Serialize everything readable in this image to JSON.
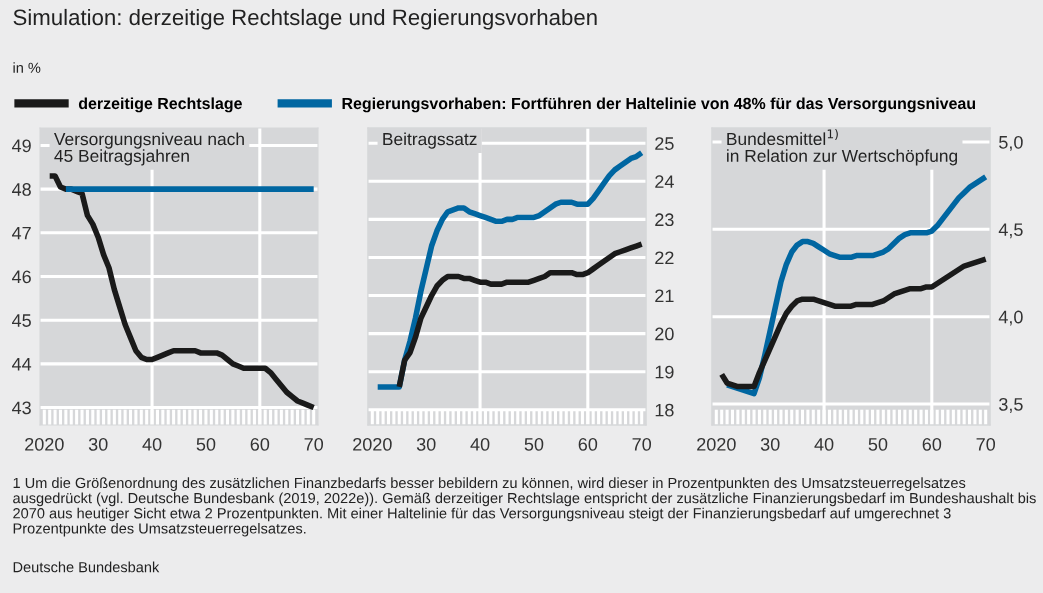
{
  "chart_data": [
    {
      "type": "line",
      "title": "Versorgungsniveau nach\n45 Beitragsjahren",
      "annotations": [
        "Simulation: derzeitige Rechtslage und Regierungsvorhaben",
        "in %",
        "1 Um die Größenordnung des zusätzlichen Finanzbedarfs besser bebildern zu können, wird dieser in Prozentpunkten des Umsatzsteuerregelsatzes ausgedrückt (vgl. Deutsche Bundesbank (2019, 2022e)). Gemäß derzeitiger Rechtslage entspricht der zusätzliche Finanzierungsbedarf im Bundeshaushalt bis 2070 aus heutiger Sicht etwa 2 Prozentpunkten. Mit einer Haltelinie für das Versorgungsniveau steigt der Finanzierungsbedarf auf umgerechnet 3 Prozentpunkte des Umsatzsteuerregelsatzes.",
        "Deutsche Bundesbank"
      ],
      "legend": "top",
      "categories": [
        "2020",
        null,
        null,
        null,
        null,
        null,
        null,
        null,
        null,
        null,
        "30",
        null,
        null,
        null,
        null,
        null,
        null,
        null,
        null,
        null,
        "40",
        null,
        null,
        null,
        null,
        null,
        null,
        null,
        null,
        null,
        "50",
        null,
        null,
        null,
        null,
        null,
        null,
        null,
        null,
        null,
        "60",
        null,
        null,
        null,
        null,
        null,
        null,
        null,
        null,
        null,
        "70"
      ],
      "series": [
        {
          "name": "derzeitige Rechtslage",
          "color": "#1a1a1a",
          "values": [
            null,
            48.3,
            48.3,
            48.05,
            48.0,
            48.0,
            47.95,
            47.9,
            47.4,
            47.2,
            46.9,
            46.5,
            46.2,
            45.7,
            45.3,
            44.9,
            44.6,
            44.3,
            44.15,
            44.1,
            44.1,
            44.15,
            44.2,
            44.25,
            44.3,
            44.3,
            44.3,
            44.3,
            44.3,
            44.25,
            44.25,
            44.25,
            44.25,
            44.2,
            44.1,
            44.0,
            43.95,
            43.9,
            43.9,
            43.9,
            43.9,
            43.9,
            43.8,
            43.65,
            43.5,
            43.35,
            43.25,
            43.15,
            43.1,
            43.05,
            43.0
          ]
        },
        {
          "name": "Regierungsvorhaben: Fortführen der Haltelinie von 48% für das Versorgungsniveau",
          "color": "#0066a1",
          "values": [
            null,
            null,
            null,
            null,
            48,
            48,
            48,
            48,
            48,
            48,
            48,
            48,
            48,
            48,
            48,
            48,
            48,
            48,
            48,
            48,
            48,
            48,
            48,
            48,
            48,
            48,
            48,
            48,
            48,
            48,
            48,
            48,
            48,
            48,
            48,
            48,
            48,
            48,
            48,
            48,
            48,
            48,
            48,
            48,
            48,
            48,
            48,
            48,
            48,
            48,
            48
          ]
        }
      ],
      "ylim": [
        42.6,
        49.4
      ],
      "yticks": [
        43,
        44,
        45,
        46,
        47,
        48,
        49
      ],
      "grid": "y",
      "ref_lines": [
        {
          "axis": "x",
          "value": "40",
          "color": "#ffffff"
        },
        {
          "axis": "x",
          "value": "60",
          "color": "#ffffff"
        }
      ]
    },
    {
      "type": "line",
      "title": "Beitragssatz",
      "categories": [
        "2020",
        null,
        null,
        null,
        null,
        null,
        null,
        null,
        null,
        null,
        "30",
        null,
        null,
        null,
        null,
        null,
        null,
        null,
        null,
        null,
        "40",
        null,
        null,
        null,
        null,
        null,
        null,
        null,
        null,
        null,
        "50",
        null,
        null,
        null,
        null,
        null,
        null,
        null,
        null,
        null,
        "60",
        null,
        null,
        null,
        null,
        null,
        null,
        null,
        null,
        null,
        "70"
      ],
      "series": [
        {
          "color": "#0066a1",
          "axis": "y2",
          "values": [
            null,
            18.6,
            18.6,
            18.6,
            18.6,
            18.6,
            19.3,
            19.8,
            20.4,
            21.1,
            21.7,
            22.3,
            22.7,
            23.0,
            23.2,
            23.25,
            23.3,
            23.3,
            23.2,
            23.15,
            23.1,
            23.05,
            23.0,
            22.95,
            22.95,
            23.0,
            23.0,
            23.05,
            23.05,
            23.05,
            23.05,
            23.1,
            23.2,
            23.3,
            23.4,
            23.45,
            23.45,
            23.45,
            23.4,
            23.4,
            23.4,
            23.55,
            23.75,
            23.95,
            24.15,
            24.3,
            24.4,
            24.5,
            24.6,
            24.65,
            24.75
          ]
        },
        {
          "color": "#1a1a1a",
          "axis": "y2",
          "values": [
            null,
            null,
            null,
            null,
            null,
            18.6,
            19.3,
            19.5,
            19.9,
            20.4,
            20.7,
            21.0,
            21.25,
            21.4,
            21.5,
            21.5,
            21.5,
            21.45,
            21.45,
            21.4,
            21.35,
            21.35,
            21.3,
            21.3,
            21.3,
            21.35,
            21.35,
            21.35,
            21.35,
            21.35,
            21.4,
            21.45,
            21.5,
            21.6,
            21.6,
            21.6,
            21.6,
            21.6,
            21.55,
            21.55,
            21.6,
            21.7,
            21.8,
            21.9,
            22.0,
            22.1,
            22.15,
            22.2,
            22.25,
            22.3,
            22.35
          ]
        }
      ],
      "y2lim": [
        17.6,
        25.4
      ],
      "y2ticks": [
        18,
        19,
        20,
        21,
        22,
        23,
        24,
        25
      ],
      "grid": "y",
      "ref_lines": [
        {
          "axis": "x",
          "value": "40",
          "color": "#ffffff"
        },
        {
          "axis": "x",
          "value": "60",
          "color": "#ffffff"
        }
      ]
    },
    {
      "type": "line",
      "title": "Bundesmittel$^{1)}$\nin Relation zur Wertschöpfung",
      "categories": [
        "2020",
        null,
        null,
        null,
        null,
        null,
        null,
        null,
        null,
        null,
        "30",
        null,
        null,
        null,
        null,
        null,
        null,
        null,
        null,
        null,
        "40",
        null,
        null,
        null,
        null,
        null,
        null,
        null,
        null,
        null,
        "50",
        null,
        null,
        null,
        null,
        null,
        null,
        null,
        null,
        null,
        "60",
        null,
        null,
        null,
        null,
        null,
        null,
        null,
        null,
        null,
        "70"
      ],
      "series": [
        {
          "color": "#0066a1",
          "axis": "y2",
          "values": [
            null,
            null,
            3.61,
            3.6,
            3.59,
            3.58,
            3.57,
            3.56,
            3.65,
            3.78,
            3.92,
            4.06,
            4.2,
            4.3,
            4.37,
            4.41,
            4.43,
            4.43,
            4.42,
            4.4,
            4.38,
            4.36,
            4.35,
            4.34,
            4.34,
            4.34,
            4.35,
            4.35,
            4.35,
            4.35,
            4.36,
            4.37,
            4.39,
            4.42,
            4.45,
            4.47,
            4.48,
            4.48,
            4.48,
            4.48,
            4.49,
            4.52,
            4.56,
            4.6,
            4.64,
            4.68,
            4.71,
            4.74,
            4.76,
            4.78,
            4.8
          ]
        },
        {
          "color": "#1a1a1a",
          "axis": "y2",
          "values": [
            null,
            3.67,
            3.62,
            3.61,
            3.6,
            3.6,
            3.6,
            3.6,
            3.68,
            3.75,
            3.82,
            3.89,
            3.96,
            4.02,
            4.06,
            4.09,
            4.1,
            4.1,
            4.1,
            4.09,
            4.08,
            4.07,
            4.06,
            4.06,
            4.06,
            4.06,
            4.07,
            4.07,
            4.07,
            4.07,
            4.08,
            4.09,
            4.11,
            4.13,
            4.14,
            4.15,
            4.16,
            4.16,
            4.16,
            4.17,
            4.17,
            4.19,
            4.21,
            4.23,
            4.25,
            4.27,
            4.29,
            4.3,
            4.31,
            4.32,
            4.33
          ]
        }
      ],
      "y2lim": [
        3.38,
        5.08
      ],
      "y2ticks": [
        {
          "value": 3.5,
          "label": "3,5"
        },
        {
          "value": 4.0,
          "label": "4,0"
        },
        {
          "value": 4.5,
          "label": "4,5"
        },
        {
          "value": 5.0,
          "label": "5,0"
        }
      ],
      "grid": "y",
      "ref_lines": [
        {
          "axis": "x",
          "value": "40",
          "color": "#ffffff"
        },
        {
          "axis": "x",
          "value": "60",
          "color": "#ffffff"
        }
      ]
    }
  ]
}
